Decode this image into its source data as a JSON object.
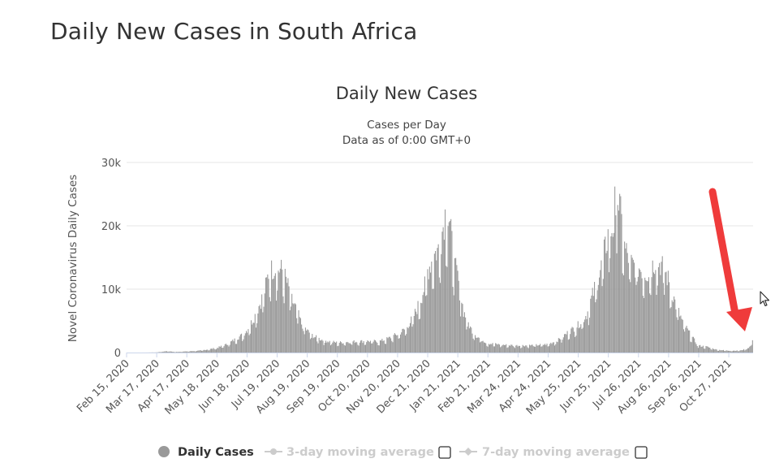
{
  "page": {
    "title": "Daily New Cases in South Africa"
  },
  "colors": {
    "bars": "#999999",
    "annotation_arrow": "#ef3b3b",
    "grid": "#e6e6e6",
    "legend_inactive": "#cccccc",
    "legend_active": "#333333"
  },
  "legend": {
    "items": [
      {
        "label": "Daily Cases",
        "state": "active"
      },
      {
        "label": "3-day moving average",
        "state": "inactive"
      },
      {
        "label": "7-day moving average",
        "state": "inactive"
      }
    ]
  },
  "annotation": {
    "icon": "red-arrow-icon",
    "target": "latest rise in daily cases"
  },
  "cursor": {
    "icon": "mouse-pointer-icon"
  },
  "chart_data": {
    "type": "bar",
    "title": "Daily New Cases",
    "subtitle_lines": [
      "Cases per Day",
      "Data as of 0:00 GMT+0"
    ],
    "xlabel": "",
    "ylabel": "Novel Coronavirus Daily Cases",
    "ylim": [
      0,
      30000
    ],
    "yticks": [
      {
        "value": 0,
        "label": "0"
      },
      {
        "value": 10000,
        "label": "10k"
      },
      {
        "value": 20000,
        "label": "20k"
      },
      {
        "value": 30000,
        "label": "30k"
      }
    ],
    "x_start": "2020-02-15",
    "x_end": "2021-11-21",
    "xticks": [
      "Feb 15, 2020",
      "Mar 17, 2020",
      "Apr 17, 2020",
      "May 18, 2020",
      "Jun 18, 2020",
      "Jul 19, 2020",
      "Aug 19, 2020",
      "Sep 19, 2020",
      "Oct 20, 2020",
      "Nov 20, 2020",
      "Dec 21, 2020",
      "Jan 21, 2021",
      "Feb 21, 2021",
      "Mar 24, 2021",
      "Apr 24, 2021",
      "May 25, 2021",
      "Jun 25, 2021",
      "Jul 26, 2021",
      "Aug 26, 2021",
      "Sep 26, 2021",
      "Oct 27, 2021"
    ],
    "grid": true,
    "legend_position": "bottom",
    "series": [
      {
        "name": "Daily Cases",
        "points": [
          [
            "2020-02-15",
            0
          ],
          [
            "2020-03-05",
            1
          ],
          [
            "2020-03-17",
            30
          ],
          [
            "2020-03-27",
            220
          ],
          [
            "2020-04-05",
            90
          ],
          [
            "2020-04-17",
            180
          ],
          [
            "2020-04-30",
            300
          ],
          [
            "2020-05-10",
            520
          ],
          [
            "2020-05-18",
            750
          ],
          [
            "2020-05-28",
            1300
          ],
          [
            "2020-06-07",
            2200
          ],
          [
            "2020-06-14",
            2900
          ],
          [
            "2020-06-18",
            3600
          ],
          [
            "2020-06-25",
            5500
          ],
          [
            "2020-07-02",
            8100
          ],
          [
            "2020-07-06",
            9800
          ],
          [
            "2020-07-10",
            12500
          ],
          [
            "2020-07-15",
            13400
          ],
          [
            "2020-07-19",
            13200
          ],
          [
            "2020-07-24",
            13000
          ],
          [
            "2020-07-29",
            11000
          ],
          [
            "2020-08-03",
            8300
          ],
          [
            "2020-08-08",
            6700
          ],
          [
            "2020-08-13",
            4500
          ],
          [
            "2020-08-19",
            3400
          ],
          [
            "2020-08-26",
            2500
          ],
          [
            "2020-09-05",
            1900
          ],
          [
            "2020-09-19",
            1550
          ],
          [
            "2020-10-01",
            1700
          ],
          [
            "2020-10-20",
            1800
          ],
          [
            "2020-11-01",
            1750
          ],
          [
            "2020-11-10",
            2200
          ],
          [
            "2020-11-20",
            2900
          ],
          [
            "2020-11-28",
            3700
          ],
          [
            "2020-12-06",
            5500
          ],
          [
            "2020-12-13",
            8000
          ],
          [
            "2020-12-18",
            10500
          ],
          [
            "2020-12-21",
            13000
          ],
          [
            "2020-12-28",
            15500
          ],
          [
            "2021-01-02",
            16500
          ],
          [
            "2021-01-08",
            21800
          ],
          [
            "2021-01-12",
            21000
          ],
          [
            "2021-01-18",
            13500
          ],
          [
            "2021-01-21",
            12000
          ],
          [
            "2021-01-27",
            6500
          ],
          [
            "2021-02-03",
            3900
          ],
          [
            "2021-02-10",
            2500
          ],
          [
            "2021-02-21",
            1450
          ],
          [
            "2021-03-10",
            1200
          ],
          [
            "2021-03-24",
            1100
          ],
          [
            "2021-04-10",
            1150
          ],
          [
            "2021-04-24",
            1300
          ],
          [
            "2021-05-05",
            2000
          ],
          [
            "2021-05-15",
            3200
          ],
          [
            "2021-05-25",
            4300
          ],
          [
            "2021-06-03",
            6000
          ],
          [
            "2021-06-10",
            9500
          ],
          [
            "2021-06-18",
            13500
          ],
          [
            "2021-06-25",
            18500
          ],
          [
            "2021-07-01",
            20000
          ],
          [
            "2021-07-03",
            26500
          ],
          [
            "2021-07-07",
            22800
          ],
          [
            "2021-07-12",
            16500
          ],
          [
            "2021-07-19",
            14000
          ],
          [
            "2021-07-26",
            13500
          ],
          [
            "2021-08-05",
            12500
          ],
          [
            "2021-08-13",
            14500
          ],
          [
            "2021-08-20",
            13800
          ],
          [
            "2021-08-26",
            11500
          ],
          [
            "2021-09-03",
            7500
          ],
          [
            "2021-09-10",
            4800
          ],
          [
            "2021-09-18",
            2800
          ],
          [
            "2021-09-26",
            1100
          ],
          [
            "2021-10-05",
            900
          ],
          [
            "2021-10-15",
            450
          ],
          [
            "2021-10-27",
            300
          ],
          [
            "2021-11-08",
            300
          ],
          [
            "2021-11-15",
            600
          ],
          [
            "2021-11-19",
            1000
          ],
          [
            "2021-11-21",
            2400
          ]
        ]
      }
    ]
  }
}
